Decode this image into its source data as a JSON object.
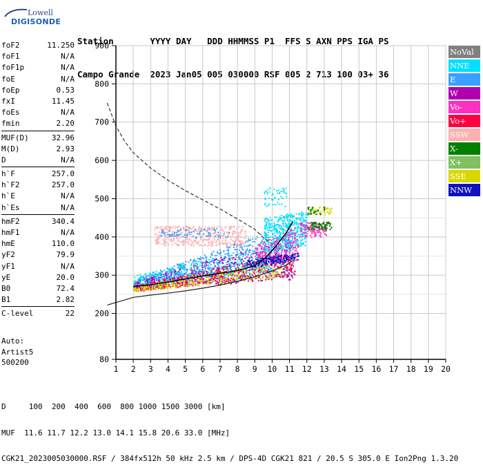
{
  "logo": {
    "brand": "Lowell",
    "product": "DIGISONDE"
  },
  "header": {
    "line1": "Station       YYYY DAY   DDD HHMMSS P1  FFS S AXN PPS IGA PS",
    "line2": "Campo Grande  2023 Jan05 005 030000 RSF 005 2 713 100 03+ 36"
  },
  "params": {
    "group1": [
      {
        "k": "foF2",
        "v": "11.250"
      },
      {
        "k": "foF1",
        "v": "N/A"
      },
      {
        "k": "foF1p",
        "v": "N/A"
      },
      {
        "k": "foE",
        "v": "N/A"
      },
      {
        "k": "foEp",
        "v": "0.53"
      },
      {
        "k": "fxI",
        "v": "11.45"
      },
      {
        "k": "foEs",
        "v": "N/A"
      },
      {
        "k": "fmin",
        "v": "2.20"
      }
    ],
    "group2": [
      {
        "k": "MUF(D)",
        "v": "32.96"
      },
      {
        "k": "M(D)",
        "v": "2.93"
      },
      {
        "k": "D",
        "v": "N/A"
      }
    ],
    "group3": [
      {
        "k": "h`F",
        "v": "257.0"
      },
      {
        "k": "h`F2",
        "v": "257.0"
      },
      {
        "k": "h`E",
        "v": "N/A"
      },
      {
        "k": "h`Es",
        "v": "N/A"
      }
    ],
    "group4": [
      {
        "k": "hmF2",
        "v": "340.4"
      },
      {
        "k": "hmF1",
        "v": "N/A"
      },
      {
        "k": "hmE",
        "v": "110.0"
      },
      {
        "k": "yF2",
        "v": "79.9"
      },
      {
        "k": "yF1",
        "v": "N/A"
      },
      {
        "k": "yE",
        "v": "20.0"
      },
      {
        "k": "B0",
        "v": "72.4"
      },
      {
        "k": "B1",
        "v": "2.82"
      }
    ],
    "group5": [
      {
        "k": "C-level",
        "v": "22"
      }
    ]
  },
  "autoblock": {
    "line1": "Auto:",
    "line2": "Artist5",
    "line3": "500200"
  },
  "footer": {
    "line1": "D     100  200  400  600  800 1000 1500 3000 [km]",
    "line2": "MUF  11.6 11.7 12.2 13.0 14.1 15.8 20.6 33.0 [MHz]",
    "line3": "CGK21_2023005030000.RSF / 384fx512h 50 kHz 2.5 km / DPS-4D CGK21 821 / 20.5 S 305.0 E Ion2Png 1.3.20"
  },
  "legend": [
    {
      "label": "NoVal",
      "color": "#808080"
    },
    {
      "label": "NNE",
      "color": "#00e0ff"
    },
    {
      "label": "E",
      "color": "#3aa0ff"
    },
    {
      "label": "W",
      "color": "#b000b0"
    },
    {
      "label": "Vo-",
      "color": "#ff30c0"
    },
    {
      "label": "Vo+",
      "color": "#ff0040"
    },
    {
      "label": "SSW",
      "color": "#ffb0b0"
    },
    {
      "label": "X-",
      "color": "#008000"
    },
    {
      "label": "X+",
      "color": "#80c060"
    },
    {
      "label": "SSE",
      "color": "#d8d800"
    },
    {
      "label": "NNW",
      "color": "#1010c0"
    }
  ],
  "chart_data": {
    "type": "scatter",
    "xlim": [
      1,
      20
    ],
    "ylim": [
      80,
      900
    ],
    "x_ticks": [
      "1",
      "2",
      "3",
      "4",
      "5",
      "6",
      "7",
      "8",
      "9",
      "10",
      "11",
      "12",
      "13",
      "14",
      "15",
      "16",
      "17",
      "18",
      "19",
      "20"
    ],
    "y_ticks": [
      {
        "value": 80,
        "label": "80"
      },
      {
        "value": 200,
        "label": "200"
      },
      {
        "value": 300,
        "label": "300"
      },
      {
        "value": 400,
        "label": "400"
      },
      {
        "value": 500,
        "label": "500"
      },
      {
        "value": 600,
        "label": "600"
      },
      {
        "value": 700,
        "label": "700"
      },
      {
        "value": 800,
        "label": "800"
      },
      {
        "value": 900,
        "label": "900"
      }
    ],
    "grid": true,
    "lines": {
      "profile_solid": [
        [
          0.5,
          222
        ],
        [
          2,
          242
        ],
        [
          3,
          248
        ],
        [
          4,
          253
        ],
        [
          5,
          259
        ],
        [
          6,
          266
        ],
        [
          7,
          274
        ],
        [
          8,
          284
        ],
        [
          9,
          296
        ],
        [
          10,
          311
        ],
        [
          10.8,
          326
        ],
        [
          11.2,
          338
        ]
      ],
      "profile_dashed": [
        [
          0.5,
          750
        ],
        [
          1,
          690
        ],
        [
          1.5,
          650
        ],
        [
          2,
          620
        ],
        [
          3,
          580
        ],
        [
          4,
          548
        ],
        [
          5,
          521
        ],
        [
          6,
          497
        ],
        [
          7,
          473
        ],
        [
          8,
          447
        ],
        [
          9,
          420
        ],
        [
          9.5,
          398
        ],
        [
          10,
          382
        ]
      ],
      "trace_black": [
        [
          2,
          270
        ],
        [
          3,
          275
        ],
        [
          4,
          282
        ],
        [
          5,
          290
        ],
        [
          6,
          298
        ],
        [
          7,
          305
        ],
        [
          8,
          312
        ],
        [
          9,
          325
        ],
        [
          9.6,
          345
        ],
        [
          10.2,
          375
        ],
        [
          10.8,
          410
        ],
        [
          11.2,
          440
        ]
      ]
    },
    "echo_regions": [
      {
        "x0": 2.0,
        "x1": 11.2,
        "y0_start": 265,
        "y0_end": 300,
        "y1_start": 290,
        "y1_end": 440,
        "color": "#3aa0ff",
        "n": 900
      },
      {
        "x0": 2.0,
        "x1": 11.2,
        "y0_start": 262,
        "y0_end": 290,
        "y1_start": 285,
        "y1_end": 400,
        "color": "#b000b0",
        "n": 500
      },
      {
        "x0": 2.0,
        "x1": 11.3,
        "y0_start": 258,
        "y0_end": 300,
        "y1_start": 275,
        "y1_end": 360,
        "color": "#ff0040",
        "n": 500
      },
      {
        "x0": 2.0,
        "x1": 10.5,
        "y0_start": 258,
        "y0_end": 295,
        "y1_start": 270,
        "y1_end": 340,
        "color": "#d8d800",
        "n": 300
      },
      {
        "x0": 9.5,
        "x1": 12.0,
        "y0_start": 355,
        "y0_end": 380,
        "y1_start": 450,
        "y1_end": 470,
        "color": "#00e0ff",
        "n": 450
      },
      {
        "x0": 2.0,
        "x1": 10.0,
        "y0_start": 275,
        "y0_end": 310,
        "y1_start": 300,
        "y1_end": 380,
        "color": "#00e0ff",
        "n": 300
      },
      {
        "x0": 3.2,
        "x1": 8.5,
        "y0_start": 378,
        "y0_end": 378,
        "y1_start": 430,
        "y1_end": 430,
        "color": "#ffb0b0",
        "n": 420
      },
      {
        "x0": 3.5,
        "x1": 7.5,
        "y0_start": 400,
        "y0_end": 400,
        "y1_start": 425,
        "y1_end": 425,
        "color": "#3aa0ff",
        "n": 80
      },
      {
        "x0": 9.0,
        "x1": 11.5,
        "y0_start": 320,
        "y0_end": 340,
        "y1_start": 380,
        "y1_end": 430,
        "color": "#ff30c0",
        "n": 220
      },
      {
        "x0": 11.6,
        "x1": 13.1,
        "y0_start": 400,
        "y0_end": 400,
        "y1_start": 440,
        "y1_end": 440,
        "color": "#ff30c0",
        "n": 120
      },
      {
        "x0": 12.0,
        "x1": 13.4,
        "y0_start": 420,
        "y0_end": 420,
        "y1_start": 440,
        "y1_end": 440,
        "color": "#008000",
        "n": 70
      },
      {
        "x0": 12.0,
        "x1": 13.4,
        "y0_start": 460,
        "y0_end": 460,
        "y1_start": 480,
        "y1_end": 480,
        "color": "#d8d800",
        "n": 40
      },
      {
        "x0": 12.0,
        "x1": 13.0,
        "y0_start": 460,
        "y0_end": 460,
        "y1_start": 485,
        "y1_end": 485,
        "color": "#008000",
        "n": 25
      },
      {
        "x0": 8.5,
        "x1": 11.5,
        "y0_start": 320,
        "y0_end": 340,
        "y1_start": 340,
        "y1_end": 360,
        "color": "#1010c0",
        "n": 150
      },
      {
        "x0": 9.5,
        "x1": 10.8,
        "y0_start": 480,
        "y0_end": 480,
        "y1_start": 530,
        "y1_end": 530,
        "color": "#00e0ff",
        "n": 50
      }
    ]
  }
}
